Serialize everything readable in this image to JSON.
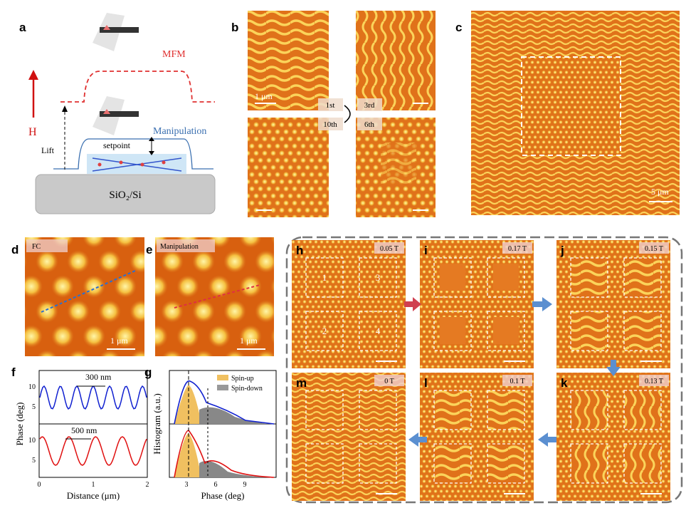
{
  "panel_a": {
    "label": "a",
    "mfm": "MFM",
    "manipulation": "Manipulation",
    "field": "H",
    "lift": "Lift",
    "setpoint": "setpoint",
    "substrate": "SiO₂/Si"
  },
  "panel_b": {
    "label": "b",
    "steps": [
      "1st",
      "3rd",
      "10th",
      "6th"
    ],
    "scale_bar": "1 μm"
  },
  "panel_c": {
    "label": "c",
    "scale_bar": "5 μm"
  },
  "panel_d": {
    "label": "d",
    "tag": "FC",
    "scale_bar": "1 μm"
  },
  "panel_e": {
    "label": "e",
    "tag": "Manipulation",
    "scale_bar": "1 μm"
  },
  "panel_f": {
    "label": "f",
    "y_label": "Phase (deg)",
    "x_label": "Distance (μm)",
    "upper_annotation": "300 nm",
    "lower_annotation": "500 nm",
    "upper_yticks": [
      5,
      10
    ],
    "lower_yticks": [
      5,
      10
    ],
    "xticks": [
      0,
      1,
      2
    ]
  },
  "panel_g": {
    "label": "g",
    "y_label": "Histogram (a.u.)",
    "x_label": "Phase (deg)",
    "legend": [
      "Spin-up",
      "Spin-down"
    ],
    "xticks": [
      3,
      6,
      9
    ]
  },
  "panels_h_to_m": [
    {
      "label": "h",
      "field": "0.05 T",
      "regions": [
        "1",
        "3",
        "2",
        "4"
      ]
    },
    {
      "label": "i",
      "field": "0.17 T"
    },
    {
      "label": "j",
      "field": "0.15 T"
    },
    {
      "label": "m",
      "field": "0 T"
    },
    {
      "label": "l",
      "field": "0.1 T"
    },
    {
      "label": "k",
      "field": "0.13 T"
    }
  ]
}
